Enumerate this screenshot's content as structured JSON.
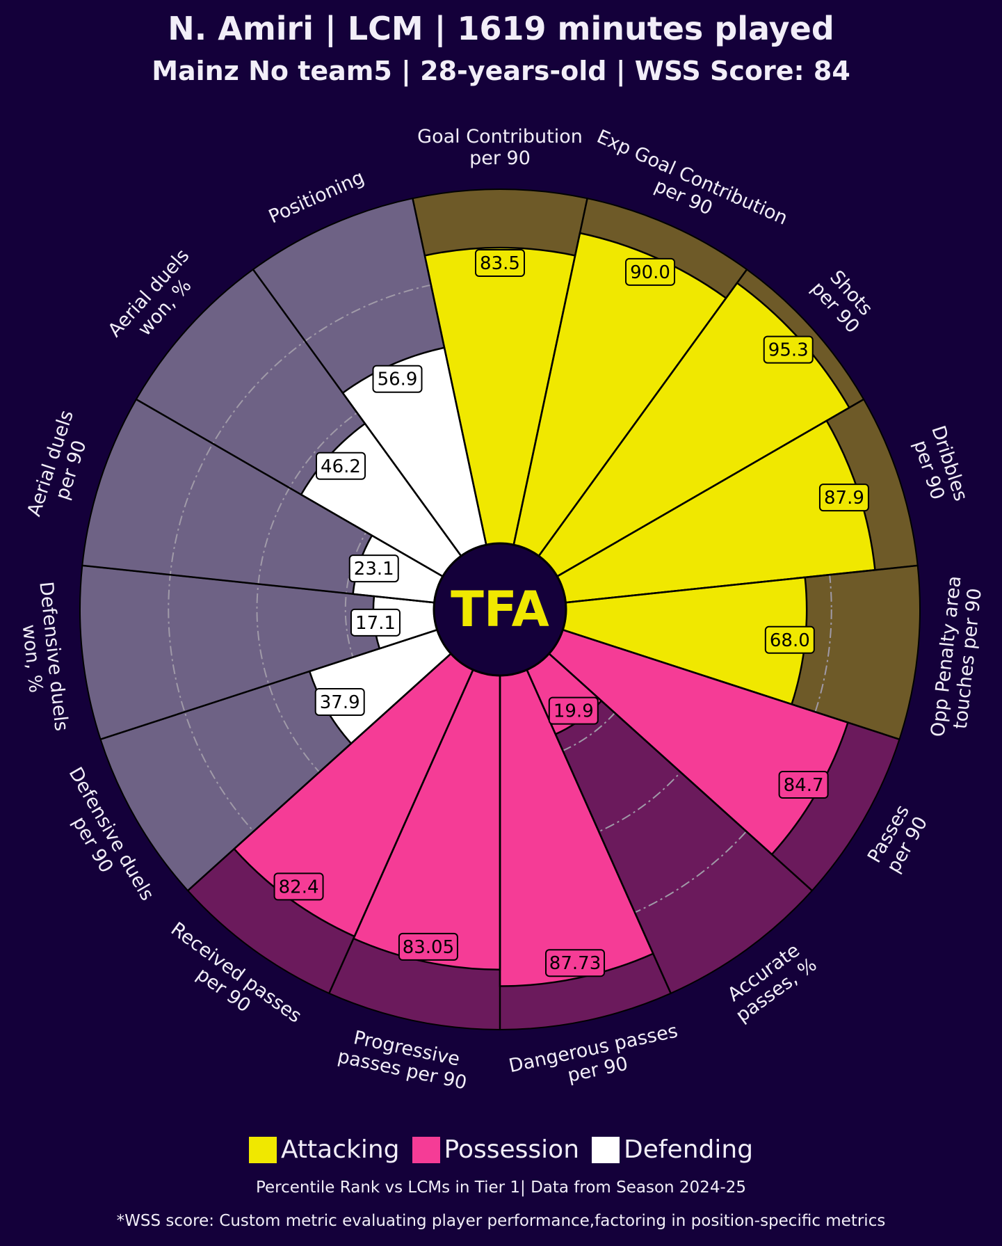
{
  "header": {
    "title": "N. Amiri | LCM | 1619 minutes played",
    "subtitle": "Mainz No team5 | 28-years-old | WSS Score: 84"
  },
  "logo_text": "TFA",
  "colors": {
    "background": "#14003a",
    "Attacking": {
      "fill": "#f0e800",
      "bg": "#6e5a28"
    },
    "Possession": {
      "fill": "#f53c96",
      "bg": "#6b1a5c"
    },
    "Defending": {
      "fill": "#ffffff",
      "bg": "#6e6285"
    }
  },
  "chart_data": {
    "type": "pizza",
    "title": "N. Amiri | LCM | 1619 minutes played",
    "range": [
      0,
      100
    ],
    "gridlines": [
      25,
      50,
      75
    ],
    "params": [
      {
        "label": "Goal Contribution\nper 90",
        "value": "83.5",
        "group": "Attacking"
      },
      {
        "label": "Exp Goal Contribution\nper 90",
        "value": "90.0",
        "group": "Attacking"
      },
      {
        "label": "Shots\nper 90",
        "value": "95.3",
        "group": "Attacking"
      },
      {
        "label": "Dribbles\nper 90",
        "value": "87.9",
        "group": "Attacking"
      },
      {
        "label": "Opp Penalty area\ntouches per 90",
        "value": "68.0",
        "group": "Attacking"
      },
      {
        "label": "Passes\nper 90",
        "value": "84.7",
        "group": "Possession"
      },
      {
        "label": "Accurate\npasses, %",
        "value": "19.9",
        "group": "Possession"
      },
      {
        "label": "Dangerous passes\nper 90",
        "value": "87.73",
        "group": "Possession"
      },
      {
        "label": "Progressive\npasses per 90",
        "value": "83.05",
        "group": "Possession"
      },
      {
        "label": "Received passes\nper 90",
        "value": "82.4",
        "group": "Possession"
      },
      {
        "label": "Defensive duels\nper 90",
        "value": "37.9",
        "group": "Defending"
      },
      {
        "label": "Defensive duels\nwon, %",
        "value": "17.1",
        "group": "Defending"
      },
      {
        "label": "Aerial duels\nper 90",
        "value": "23.1",
        "group": "Defending"
      },
      {
        "label": "Aerial duels\nwon, %",
        "value": "46.2",
        "group": "Defending"
      },
      {
        "label": "Positioning",
        "value": "56.9",
        "group": "Defending"
      }
    ],
    "legend": [
      "Attacking",
      "Possession",
      "Defending"
    ],
    "legend_placement": "bottom-center"
  },
  "footer": {
    "note1": "Percentile Rank vs LCMs in Tier 1| Data from Season 2024-25",
    "note2": "*WSS score: Custom metric evaluating player performance,factoring in position-specific metrics"
  }
}
